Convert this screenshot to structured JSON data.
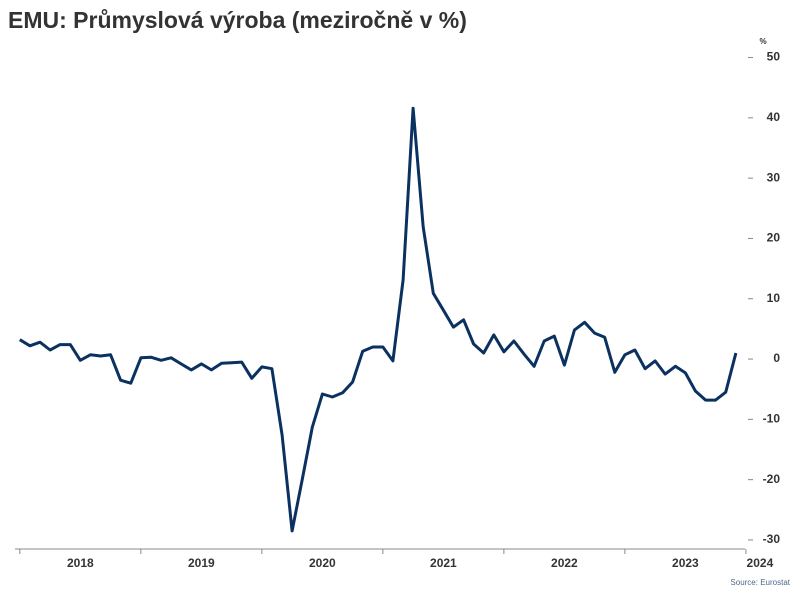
{
  "chart_data": {
    "type": "line",
    "title": "EMU: Průmyslová výroba (meziročně v %)",
    "y_label": "%",
    "source": "Source: Eurostat",
    "color": "#0b3160",
    "grid": false,
    "x": [
      2018,
      2018.083,
      2018.167,
      2018.25,
      2018.333,
      2018.417,
      2018.5,
      2018.583,
      2018.667,
      2018.75,
      2018.833,
      2018.917,
      2019,
      2019.083,
      2019.167,
      2019.25,
      2019.333,
      2019.417,
      2019.5,
      2019.583,
      2019.667,
      2019.75,
      2019.833,
      2019.917,
      2020,
      2020.083,
      2020.167,
      2020.25,
      2020.333,
      2020.417,
      2020.5,
      2020.583,
      2020.667,
      2020.75,
      2020.833,
      2020.917,
      2021,
      2021.083,
      2021.167,
      2021.25,
      2021.333,
      2021.417,
      2021.5,
      2021.583,
      2021.667,
      2021.75,
      2021.833,
      2021.917,
      2022,
      2022.083,
      2022.167,
      2022.25,
      2022.333,
      2022.417,
      2022.5,
      2022.583,
      2022.667,
      2022.75,
      2022.833,
      2022.917,
      2023,
      2023.083,
      2023.167,
      2023.25,
      2023.333,
      2023.417,
      2023.5,
      2023.583,
      2023.667,
      2023.75,
      2023.833,
      2023.917
    ],
    "values": [
      3.2,
      2.2,
      2.8,
      1.5,
      2.4,
      2.4,
      -0.2,
      0.7,
      0.5,
      0.7,
      -3.5,
      -4.0,
      0.2,
      0.3,
      -0.2,
      0.2,
      -0.8,
      -1.8,
      -0.8,
      -1.8,
      -0.7,
      -0.6,
      -0.5,
      -3.2,
      -1.3,
      -1.6,
      -12.6,
      -28.5,
      -20,
      -11.3,
      -5.8,
      -6.3,
      -5.6,
      -3.8,
      1.3,
      2.0,
      2.0,
      -0.3,
      13.1,
      41.6,
      21.9,
      10.9,
      8.1,
      5.3,
      6.5,
      2.5,
      1.0,
      4.0,
      1.2,
      3.0,
      0.8,
      -1.2,
      3.0,
      3.8,
      -1.0,
      4.8,
      6.1,
      4.3,
      3.6,
      -2.2,
      0.7,
      1.5,
      -1.6,
      -0.3,
      -2.5,
      -1.2,
      -2.3,
      -5.3,
      -6.8,
      -6.8,
      -5.5,
      1.0
    ],
    "xlim": [
      2017.96,
      2024.1
    ],
    "xticks": [
      2018,
      2019,
      2020,
      2021,
      2022,
      2023,
      2024
    ],
    "ylim": [
      -31.5,
      51
    ],
    "yticks": [
      -30,
      -20,
      -10,
      0,
      10,
      20,
      30,
      40,
      50
    ]
  }
}
